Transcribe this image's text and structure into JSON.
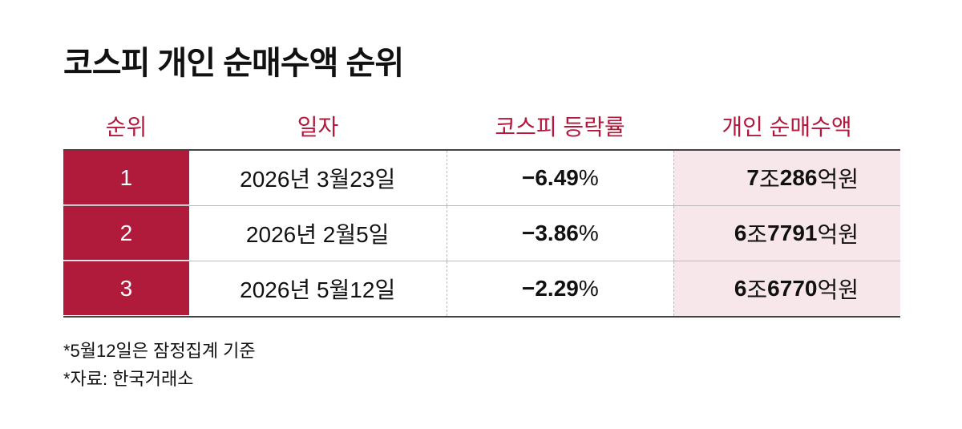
{
  "header": {
    "title": "코스피 개인 순매수액 순위"
  },
  "table": {
    "columns": [
      "순위",
      "일자",
      "코스피 등락률",
      "개인 순매수액"
    ],
    "rows": [
      [
        "1",
        "2026년 3월23일",
        "−6.49%",
        "7조286억원"
      ],
      [
        "2",
        "2026년 2월5일",
        "−3.86%",
        "6조7791억원"
      ],
      [
        "3",
        "2026년 5월12일",
        "−2.29%",
        "6조6770억원"
      ]
    ]
  },
  "footnotes": [
    "*5월12일은 잠정집계 기준",
    "*자료: 한국거래소"
  ]
}
